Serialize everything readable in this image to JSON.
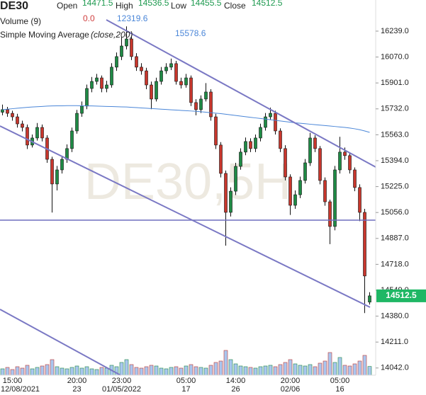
{
  "chart_data": {
    "type": "candlestick",
    "symbol": "DE30",
    "watermark": "DE30,5H",
    "legend": {
      "open_label": "Open",
      "open": 14471.5,
      "high_label": "High",
      "high": 14536.5,
      "low_label": "Low",
      "low": 14455.5,
      "close_label": "Close",
      "close": 14512.5,
      "volume_label": "Volume (9)",
      "volume_change": {
        "value": 0,
        "label": "0.0"
      },
      "volume": 12319.6,
      "sma_label": "Simple Moving Average",
      "sma_params": "(close,200)",
      "sma": 15578.6
    },
    "categories": [
      null,
      null,
      "15:00",
      null,
      null,
      null,
      null,
      null,
      null,
      null,
      null,
      null,
      null,
      null,
      null,
      "20:00",
      null,
      null,
      null,
      null,
      null,
      null,
      null,
      null,
      "23:00",
      null,
      null,
      null,
      null,
      null,
      null,
      null,
      null,
      null,
      null,
      null,
      null,
      "05:00",
      null,
      null,
      null,
      null,
      null,
      null,
      null,
      null,
      null,
      "14:00",
      null,
      null,
      null,
      null,
      null,
      null,
      null,
      null,
      null,
      null,
      "20:00",
      null,
      null,
      null,
      null,
      null,
      null,
      null,
      null,
      null,
      "05:00",
      null,
      null,
      null,
      null,
      null,
      null
    ],
    "dates": [
      null,
      null,
      "12/08/2021",
      null,
      null,
      null,
      null,
      null,
      null,
      null,
      null,
      null,
      null,
      null,
      null,
      "23",
      null,
      null,
      null,
      null,
      null,
      null,
      null,
      null,
      "01/05/2022",
      null,
      null,
      null,
      null,
      null,
      null,
      null,
      null,
      null,
      null,
      null,
      null,
      "17",
      null,
      null,
      null,
      null,
      null,
      null,
      null,
      null,
      null,
      "26",
      null,
      null,
      null,
      null,
      null,
      null,
      null,
      null,
      null,
      null,
      "02/06",
      null,
      null,
      null,
      null,
      null,
      null,
      null,
      null,
      null,
      "16",
      null,
      null,
      null,
      null,
      null,
      null
    ],
    "open": [
      15710,
      15727,
      15703,
      15680,
      15634,
      15611,
      15496,
      15542,
      15611,
      15542,
      15403,
      15242,
      15334,
      15403,
      15473,
      15588,
      15703,
      15750,
      15865,
      15911,
      15934,
      15865,
      15888,
      16004,
      16073,
      16142,
      16188,
      16073,
      16004,
      15980,
      15888,
      15796,
      15911,
      15980,
      16004,
      16027,
      15911,
      15888,
      15934,
      15773,
      15727,
      15796,
      15842,
      15680,
      15496,
      15311,
      15057,
      15195,
      15357,
      15450,
      15519,
      15473,
      15542,
      15611,
      15680,
      15703,
      15588,
      15473,
      15288,
      15103,
      15172,
      15265,
      15380,
      15542,
      15473,
      15265,
      15126,
      14965,
      15334,
      15450,
      15427,
      15334,
      15219,
      15057,
      14471.5
    ],
    "high": [
      15760,
      15745,
      15720,
      15700,
      15655,
      15630,
      15565,
      15640,
      15630,
      15560,
      15420,
      15360,
      15425,
      15500,
      15610,
      15725,
      15780,
      15890,
      15940,
      15960,
      15950,
      15915,
      16030,
      16100,
      16200,
      16270,
      16210,
      16095,
      16030,
      16000,
      15910,
      15935,
      16005,
      16030,
      16060,
      16045,
      15935,
      15960,
      15950,
      15795,
      15820,
      15900,
      15860,
      15700,
      15515,
      15330,
      15220,
      15380,
      15475,
      15545,
      15540,
      15565,
      15635,
      15705,
      15740,
      15720,
      15605,
      15495,
      15305,
      15200,
      15290,
      15405,
      15575,
      15560,
      15490,
      15285,
      15140,
      15360,
      15550,
      15480,
      15445,
      15350,
      15240,
      15080,
      14536.5
    ],
    "low": [
      15690,
      15680,
      15655,
      15610,
      15585,
      15470,
      15480,
      15525,
      15520,
      15380,
      15056,
      15200,
      15310,
      15380,
      15450,
      15570,
      15680,
      15730,
      15840,
      15890,
      15840,
      15840,
      15870,
      15980,
      16050,
      16120,
      16050,
      15980,
      15955,
      15860,
      15730,
      15780,
      15890,
      15960,
      15985,
      15890,
      15865,
      15870,
      15750,
      15690,
      15705,
      15780,
      15655,
      15470,
      15285,
      14840,
      15030,
      15170,
      15335,
      15430,
      15450,
      15450,
      15520,
      15590,
      15660,
      15565,
      15450,
      15265,
      15040,
      15080,
      15150,
      15245,
      15360,
      15450,
      15240,
      15100,
      14850,
      14940,
      15310,
      15400,
      15310,
      15195,
      15000,
      14400,
      14455.5
    ],
    "close": [
      15727,
      15703,
      15680,
      15634,
      15611,
      15496,
      15542,
      15611,
      15542,
      15403,
      15242,
      15334,
      15403,
      15473,
      15588,
      15703,
      15750,
      15865,
      15911,
      15934,
      15865,
      15888,
      16004,
      16073,
      16142,
      16188,
      16073,
      16004,
      15980,
      15888,
      15796,
      15911,
      15980,
      16004,
      16027,
      15911,
      15888,
      15934,
      15773,
      15727,
      15796,
      15842,
      15680,
      15496,
      15311,
      15057,
      15195,
      15357,
      15450,
      15519,
      15473,
      15542,
      15611,
      15680,
      15703,
      15588,
      15473,
      15288,
      15103,
      15172,
      15265,
      15380,
      15542,
      15473,
      15265,
      15126,
      14965,
      15334,
      15450,
      15427,
      15334,
      15219,
      15057,
      14642,
      14512.5
    ],
    "volumes": [
      9000,
      11000,
      8000,
      12000,
      10000,
      14000,
      9000,
      11000,
      13000,
      15000,
      22000,
      12000,
      10000,
      9000,
      11000,
      13000,
      10000,
      12000,
      9000,
      8000,
      11000,
      10000,
      14000,
      12000,
      18000,
      22000,
      15000,
      11000,
      10000,
      12000,
      14000,
      13000,
      10000,
      9000,
      11000,
      12000,
      10000,
      13000,
      15000,
      12000,
      11000,
      10000,
      14000,
      18000,
      20000,
      35000,
      22000,
      16000,
      13000,
      12000,
      11000,
      10000,
      12000,
      13000,
      14000,
      12000,
      15000,
      18000,
      22000,
      16000,
      14000,
      13000,
      15000,
      12000,
      17000,
      20000,
      32000,
      18000,
      25000,
      14000,
      13000,
      16000,
      20000,
      28000,
      12319.6
    ],
    "sma_values": [
      15727,
      15730,
      15733,
      15736,
      15739,
      15742,
      15744,
      15746,
      15748,
      15750,
      15751,
      15752,
      15752,
      15753,
      15753,
      15753,
      15752,
      15752,
      15751,
      15750,
      15749,
      15748,
      15747,
      15746,
      15745,
      15744,
      15742,
      15740,
      15738,
      15736,
      15734,
      15732,
      15730,
      15728,
      15726,
      15724,
      15722,
      15720,
      15718,
      15716,
      15713,
      15710,
      15707,
      15704,
      15701,
      15697,
      15693,
      15689,
      15685,
      15681,
      15677,
      15673,
      15669,
      15665,
      15661,
      15657,
      15653,
      15649,
      15645,
      15641,
      15638,
      15635,
      15632,
      15629,
      15626,
      15623,
      15620,
      15617,
      15614,
      15611,
      15607,
      15602,
      15596,
      15588,
      15578.6
    ],
    "ylim": [
      13995,
      16442
    ],
    "yticks": [
      {
        "value": 16239,
        "label": "16239.0"
      },
      {
        "value": 16070,
        "label": "16070.0"
      },
      {
        "value": 15901,
        "label": "15901.0"
      },
      {
        "value": 15732,
        "label": "15732.0"
      },
      {
        "value": 15563,
        "label": "15563.0"
      },
      {
        "value": 15394,
        "label": "15394.0"
      },
      {
        "value": 15225,
        "label": "15225.0"
      },
      {
        "value": 15056,
        "label": "15056.0"
      },
      {
        "value": 14887,
        "label": "14887.0"
      },
      {
        "value": 14718,
        "label": "14718.0"
      },
      {
        "value": 14549,
        "label": "14549.0"
      },
      {
        "value": 14380,
        "label": "14380.0"
      },
      {
        "value": 14211,
        "label": "14211.0"
      },
      {
        "value": 14042,
        "label": "14042.0"
      }
    ],
    "volume_ylim": [
      0,
      45000
    ],
    "up_color": "#1f8a45",
    "down_color": "#c8372d",
    "sma_color": "#4a86d8",
    "volume_color": "#a9c6ef",
    "last_price_color": "#1fb765"
  }
}
